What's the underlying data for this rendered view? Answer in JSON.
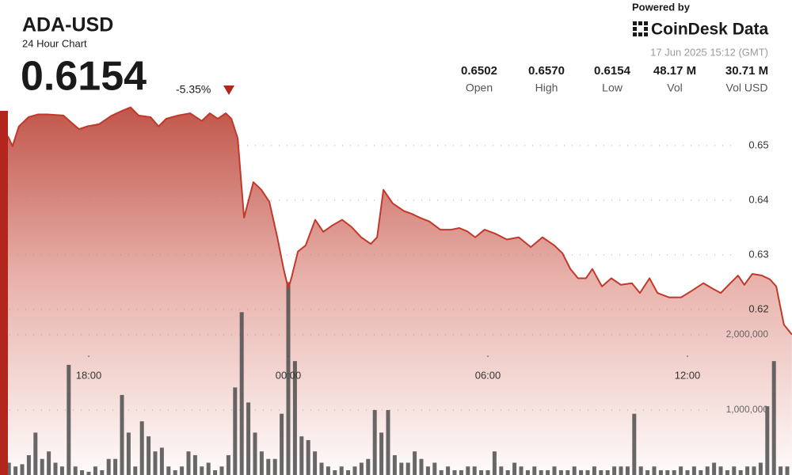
{
  "header": {
    "price": "0.6154",
    "change": "-5.35%",
    "powered_by": "Powered by",
    "brand": "CoinDesk Data",
    "timestamp": "17 Jun 2025 15:12 (GMT)",
    "stats": [
      {
        "value": "0.6502",
        "label": "Open"
      },
      {
        "value": "0.6570",
        "label": "High"
      },
      {
        "value": "0.6154",
        "label": "Low"
      },
      {
        "value": "48.17 M",
        "label": "Vol"
      },
      {
        "value": "30.71 M",
        "label": "Vol USD"
      }
    ]
  },
  "chart_data": {
    "type": "line",
    "title": "ADA-USD",
    "subtitle": "24 Hour Chart",
    "xlim": [
      15.2,
      39.2
    ],
    "xticks": [
      {
        "value": 18,
        "label": "18:00"
      },
      {
        "value": 24,
        "label": "00:00"
      },
      {
        "value": 30,
        "label": "06:00"
      },
      {
        "value": 36,
        "label": "12:00"
      }
    ],
    "ylim": [
      0.5878,
      0.6578
    ],
    "yticks": [
      0.65,
      0.64,
      0.63,
      0.62
    ],
    "y2lim": [
      0,
      5080000
    ],
    "y2ticks": [
      {
        "value": 2000000,
        "label": "2,000,000"
      },
      {
        "value": 1000000,
        "label": "1,000,000"
      }
    ],
    "grid": true,
    "series": [
      {
        "type": "line",
        "color": "#c0392b",
        "x": [
          15.57,
          15.71,
          15.9,
          16.19,
          16.48,
          16.76,
          17.24,
          17.48,
          17.71,
          17.95,
          18.31,
          18.67,
          19.02,
          19.26,
          19.5,
          19.86,
          20.1,
          20.33,
          20.69,
          21.05,
          21.4,
          21.64,
          21.88,
          22.12,
          22.29,
          22.48,
          22.67,
          22.95,
          23.19,
          23.43,
          23.67,
          23.86,
          24.0,
          24.1,
          24.29,
          24.52,
          24.81,
          25.05,
          25.33,
          25.62,
          25.9,
          26.19,
          26.48,
          26.67,
          26.86,
          27.14,
          27.48,
          27.71,
          27.95,
          28.24,
          28.57,
          28.9,
          29.14,
          29.38,
          29.62,
          29.9,
          30.21,
          30.57,
          30.93,
          31.29,
          31.64,
          32.0,
          32.24,
          32.48,
          32.71,
          32.95,
          33.14,
          33.43,
          33.71,
          34.0,
          34.33,
          34.57,
          34.86,
          35.1,
          35.45,
          35.81,
          36.1,
          36.48,
          36.76,
          37.0,
          37.24,
          37.52,
          37.71,
          37.95,
          38.24,
          38.48,
          38.67,
          38.9,
          39.14
        ],
        "values": [
          0.6517,
          0.6499,
          0.6535,
          0.6552,
          0.6557,
          0.6557,
          0.6555,
          0.6542,
          0.653,
          0.6535,
          0.6539,
          0.6554,
          0.6564,
          0.657,
          0.6555,
          0.6552,
          0.6535,
          0.6549,
          0.6555,
          0.6559,
          0.6545,
          0.6559,
          0.6549,
          0.6559,
          0.6549,
          0.6513,
          0.6368,
          0.6433,
          0.6419,
          0.6397,
          0.6332,
          0.6274,
          0.6238,
          0.6259,
          0.6306,
          0.6317,
          0.6364,
          0.6342,
          0.6354,
          0.6364,
          0.6351,
          0.6332,
          0.632,
          0.6332,
          0.6419,
          0.6394,
          0.638,
          0.6375,
          0.6368,
          0.6361,
          0.6346,
          0.6346,
          0.6349,
          0.6343,
          0.6332,
          0.6346,
          0.6339,
          0.6328,
          0.6332,
          0.6314,
          0.6332,
          0.6317,
          0.6303,
          0.6274,
          0.6257,
          0.6257,
          0.6274,
          0.6242,
          0.6257,
          0.6245,
          0.6248,
          0.623,
          0.6257,
          0.623,
          0.6222,
          0.6222,
          0.6233,
          0.6248,
          0.6238,
          0.623,
          0.6245,
          0.6262,
          0.6245,
          0.6265,
          0.6262,
          0.6255,
          0.6242,
          0.6172,
          0.6154
        ]
      },
      {
        "type": "bar",
        "axis": "y2",
        "color": "#4d4d4d",
        "x": [
          15.6,
          15.8,
          16.0,
          16.2,
          16.4,
          16.6,
          16.8,
          17.0,
          17.2,
          17.4,
          17.6,
          17.8,
          18.0,
          18.2,
          18.4,
          18.6,
          18.8,
          19.0,
          19.2,
          19.4,
          19.6,
          19.8,
          20.0,
          20.2,
          20.4,
          20.6,
          20.8,
          21.0,
          21.2,
          21.4,
          21.6,
          21.8,
          22.0,
          22.2,
          22.4,
          22.6,
          22.8,
          23.0,
          23.2,
          23.4,
          23.6,
          23.8,
          24.0,
          24.2,
          24.4,
          24.6,
          24.8,
          25.0,
          25.2,
          25.4,
          25.6,
          25.8,
          26.0,
          26.2,
          26.4,
          26.6,
          26.8,
          27.0,
          27.2,
          27.4,
          27.6,
          27.8,
          28.0,
          28.2,
          28.4,
          28.6,
          28.8,
          29.0,
          29.2,
          29.4,
          29.6,
          29.8,
          30.0,
          30.2,
          30.4,
          30.6,
          30.8,
          31.0,
          31.2,
          31.4,
          31.6,
          31.8,
          32.0,
          32.2,
          32.4,
          32.6,
          32.8,
          33.0,
          33.2,
          33.4,
          33.6,
          33.8,
          34.0,
          34.2,
          34.4,
          34.6,
          34.8,
          35.0,
          35.2,
          35.4,
          35.6,
          35.8,
          36.0,
          36.2,
          36.4,
          36.6,
          36.8,
          37.0,
          37.2,
          37.4,
          37.6,
          37.8,
          38.0,
          38.2,
          38.4,
          38.6,
          38.8,
          39.0
        ],
        "values": [
          300000,
          250000,
          280000,
          400000,
          700000,
          350000,
          450000,
          300000,
          250000,
          1600000,
          250000,
          200000,
          180000,
          250000,
          200000,
          350000,
          350000,
          1200000,
          700000,
          250000,
          850000,
          650000,
          450000,
          500000,
          250000,
          200000,
          250000,
          450000,
          400000,
          250000,
          300000,
          200000,
          250000,
          400000,
          1300000,
          2300000,
          1100000,
          700000,
          450000,
          350000,
          350000,
          950000,
          2700000,
          1650000,
          650000,
          600000,
          450000,
          300000,
          250000,
          200000,
          250000,
          200000,
          250000,
          300000,
          350000,
          1000000,
          700000,
          1000000,
          400000,
          300000,
          300000,
          450000,
          350000,
          250000,
          300000,
          200000,
          250000,
          200000,
          200000,
          250000,
          250000,
          200000,
          200000,
          450000,
          250000,
          200000,
          300000,
          250000,
          200000,
          250000,
          200000,
          200000,
          250000,
          200000,
          200000,
          250000,
          200000,
          200000,
          250000,
          200000,
          200000,
          250000,
          250000,
          250000,
          950000,
          250000,
          200000,
          250000,
          200000,
          200000,
          200000,
          250000,
          200000,
          250000,
          200000,
          250000,
          300000,
          250000,
          200000,
          250000,
          200000,
          250000,
          250000,
          300000,
          1050000,
          1650000,
          250000,
          250000
        ]
      }
    ]
  }
}
